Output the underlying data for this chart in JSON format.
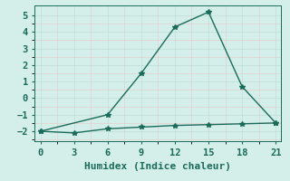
{
  "line1_x": [
    0,
    6,
    9,
    12,
    15,
    18,
    21
  ],
  "line1_y": [
    -2,
    -1,
    1.5,
    4.3,
    5.2,
    0.7,
    -1.5
  ],
  "line2_x": [
    0,
    3,
    6,
    9,
    12,
    15,
    18,
    21
  ],
  "line2_y": [
    -2.0,
    -2.1,
    -1.85,
    -1.75,
    -1.65,
    -1.6,
    -1.55,
    -1.5
  ],
  "line_color": "#1a6b5a",
  "bg_color": "#d4eeea",
  "grid_color_major": "#c0ddd8",
  "grid_color_minor": "#e0f0ed",
  "xlabel": "Humidex (Indice chaleur)",
  "xlim": [
    -0.5,
    21.5
  ],
  "ylim": [
    -2.6,
    5.6
  ],
  "xticks": [
    0,
    3,
    6,
    9,
    12,
    15,
    18,
    21
  ],
  "yticks": [
    -2,
    -1,
    0,
    1,
    2,
    3,
    4,
    5
  ],
  "marker": "*",
  "markersize": 4,
  "linewidth": 1.0,
  "font_family": "monospace",
  "xlabel_fontsize": 8,
  "tick_fontsize": 7.5
}
